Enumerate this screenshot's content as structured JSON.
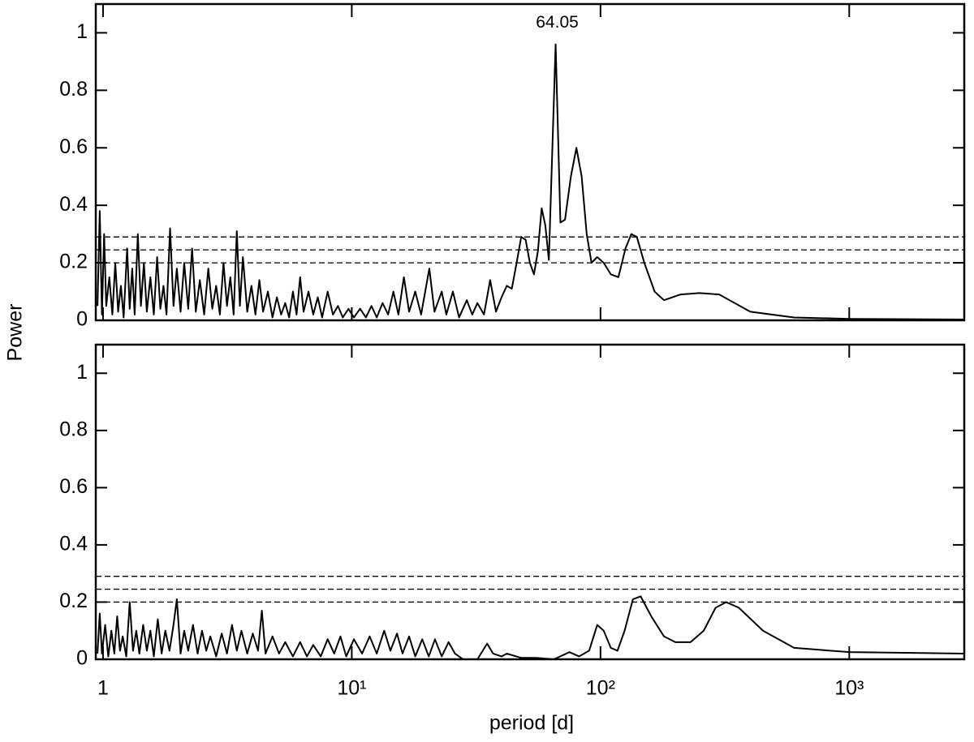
{
  "chart_data": [
    {
      "type": "line",
      "ylabel": "Power",
      "xlim": [
        0.935,
        2900
      ],
      "ylim": [
        0,
        1.1
      ],
      "log_x": true,
      "xticks": [
        1,
        {
          "value": 10,
          "label": "10¹"
        },
        {
          "value": 100,
          "label": "10²"
        },
        {
          "value": 1000,
          "label": "10³"
        }
      ],
      "xtick_labels": false,
      "yticks": [
        0,
        0.2,
        0.4,
        0.6,
        0.8,
        1
      ],
      "hlines": [
        0.29,
        0.245,
        0.2
      ],
      "hline_style": "dashed",
      "annotations": [
        {
          "text": "64.05"
        }
      ],
      "x": [
        0.95,
        0.97,
        0.99,
        1.01,
        1.03,
        1.06,
        1.09,
        1.12,
        1.15,
        1.18,
        1.21,
        1.25,
        1.28,
        1.31,
        1.34,
        1.38,
        1.42,
        1.46,
        1.5,
        1.55,
        1.6,
        1.65,
        1.7,
        1.75,
        1.8,
        1.86,
        1.92,
        1.98,
        2.05,
        2.12,
        2.2,
        2.28,
        2.36,
        2.45,
        2.55,
        2.65,
        2.75,
        2.85,
        2.95,
        3.05,
        3.15,
        3.25,
        3.35,
        3.45,
        3.55,
        3.65,
        3.8,
        3.95,
        4.1,
        4.25,
        4.4,
        4.6,
        4.8,
        5.0,
        5.2,
        5.4,
        5.6,
        5.8,
        6.0,
        6.2,
        6.4,
        6.7,
        7.0,
        7.3,
        7.6,
        8.0,
        8.4,
        8.8,
        9.2,
        9.7,
        10.2,
        10.8,
        11.4,
        12,
        12.6,
        13.3,
        14,
        14.7,
        15.4,
        16.2,
        17,
        18,
        19,
        20.5,
        21.5,
        23,
        24,
        25.5,
        27,
        29,
        30.5,
        32,
        34,
        36,
        38,
        40,
        42,
        44,
        46,
        48,
        50,
        52,
        54,
        56,
        58,
        60,
        62,
        66,
        69,
        72,
        76,
        80,
        84,
        88,
        92,
        97,
        103,
        110,
        118,
        126,
        133,
        140,
        150,
        165,
        180,
        210,
        250,
        300,
        400,
        600,
        1000,
        2900
      ],
      "series": [
        {
          "color": "#000000",
          "values": [
            0.05,
            0.38,
            0.02,
            0.3,
            0.05,
            0.15,
            0.02,
            0.2,
            0.03,
            0.12,
            0.01,
            0.25,
            0.04,
            0.18,
            0.02,
            0.3,
            0.05,
            0.2,
            0.03,
            0.15,
            0.02,
            0.22,
            0.04,
            0.12,
            0.02,
            0.32,
            0.05,
            0.18,
            0.03,
            0.2,
            0.04,
            0.25,
            0.03,
            0.14,
            0.02,
            0.18,
            0.04,
            0.12,
            0.02,
            0.2,
            0.05,
            0.15,
            0.02,
            0.31,
            0.05,
            0.22,
            0.03,
            0.12,
            0.02,
            0.14,
            0.03,
            0.1,
            0.01,
            0.08,
            0.02,
            0.06,
            0.01,
            0.1,
            0.02,
            0.15,
            0.03,
            0.1,
            0.02,
            0.08,
            0.01,
            0.1,
            0.02,
            0.05,
            0.01,
            0.04,
            0.01,
            0.04,
            0.01,
            0.05,
            0.01,
            0.06,
            0.02,
            0.1,
            0.02,
            0.15,
            0.03,
            0.1,
            0.02,
            0.18,
            0.03,
            0.1,
            0.02,
            0.1,
            0.01,
            0.07,
            0.02,
            0.06,
            0.02,
            0.14,
            0.03,
            0.08,
            0.12,
            0.11,
            0.2,
            0.29,
            0.28,
            0.2,
            0.16,
            0.24,
            0.39,
            0.33,
            0.21,
            0.96,
            0.34,
            0.35,
            0.5,
            0.6,
            0.5,
            0.3,
            0.2,
            0.22,
            0.2,
            0.16,
            0.15,
            0.25,
            0.3,
            0.29,
            0.2,
            0.1,
            0.07,
            0.09,
            0.095,
            0.09,
            0.03,
            0.01,
            0.005,
            0.003
          ]
        }
      ]
    },
    {
      "type": "line",
      "xlabel": "period [d]",
      "xlim": [
        0.935,
        2900
      ],
      "ylim": [
        0,
        1.1
      ],
      "log_x": true,
      "xticks": [
        1,
        {
          "value": 10,
          "label": "10¹"
        },
        {
          "value": 100,
          "label": "10²"
        },
        {
          "value": 1000,
          "label": "10³"
        }
      ],
      "xtick_labels": true,
      "yticks": [
        0,
        0.2,
        0.4,
        0.6,
        0.8,
        1
      ],
      "hlines": [
        0.29,
        0.245,
        0.2
      ],
      "hline_style": "dashed",
      "x": [
        0.95,
        0.97,
        0.99,
        1.02,
        1.05,
        1.08,
        1.11,
        1.14,
        1.17,
        1.2,
        1.24,
        1.28,
        1.32,
        1.36,
        1.4,
        1.45,
        1.5,
        1.55,
        1.6,
        1.66,
        1.72,
        1.78,
        1.85,
        1.92,
        1.98,
        2.05,
        2.12,
        2.2,
        2.3,
        2.4,
        2.5,
        2.6,
        2.7,
        2.85,
        3.0,
        3.15,
        3.3,
        3.45,
        3.6,
        3.8,
        4.0,
        4.2,
        4.35,
        4.5,
        4.8,
        5.1,
        5.4,
        5.8,
        6.2,
        6.6,
        7,
        7.5,
        8,
        8.5,
        9,
        9.5,
        10.2,
        11,
        11.8,
        12.6,
        13.5,
        14.3,
        15.2,
        16,
        17,
        18,
        19.2,
        20.4,
        21.6,
        23,
        24.5,
        26,
        28,
        32,
        35,
        37,
        40,
        42,
        48,
        55,
        65,
        75,
        82,
        90,
        97,
        103,
        110,
        117,
        125,
        135,
        145,
        160,
        180,
        200,
        230,
        260,
        290,
        320,
        360,
        450,
        600,
        1000,
        2900
      ],
      "series": [
        {
          "color": "#000000",
          "values": [
            0.02,
            0.16,
            0.02,
            0.12,
            0.01,
            0.1,
            0.02,
            0.15,
            0.03,
            0.08,
            0.01,
            0.2,
            0.03,
            0.1,
            0.02,
            0.12,
            0.03,
            0.1,
            0.01,
            0.14,
            0.02,
            0.1,
            0.03,
            0.12,
            0.21,
            0.02,
            0.1,
            0.03,
            0.12,
            0.02,
            0.1,
            0.03,
            0.08,
            0.01,
            0.09,
            0.02,
            0.12,
            0.03,
            0.1,
            0.02,
            0.09,
            0.03,
            0.17,
            0.02,
            0.08,
            0.02,
            0.06,
            0.01,
            0.06,
            0.01,
            0.05,
            0.01,
            0.07,
            0.02,
            0.08,
            0.01,
            0.07,
            0.02,
            0.08,
            0.02,
            0.1,
            0.03,
            0.09,
            0.02,
            0.08,
            0.01,
            0.07,
            0.01,
            0.07,
            0.01,
            0.06,
            0.02,
            0,
            0,
            0.055,
            0.02,
            0.01,
            0.02,
            0.005,
            0.005,
            0,
            0.025,
            0.01,
            0.03,
            0.12,
            0.1,
            0.04,
            0.03,
            0.1,
            0.21,
            0.22,
            0.15,
            0.08,
            0.06,
            0.06,
            0.1,
            0.18,
            0.2,
            0.18,
            0.1,
            0.04,
            0.025,
            0.02
          ]
        }
      ]
    }
  ]
}
